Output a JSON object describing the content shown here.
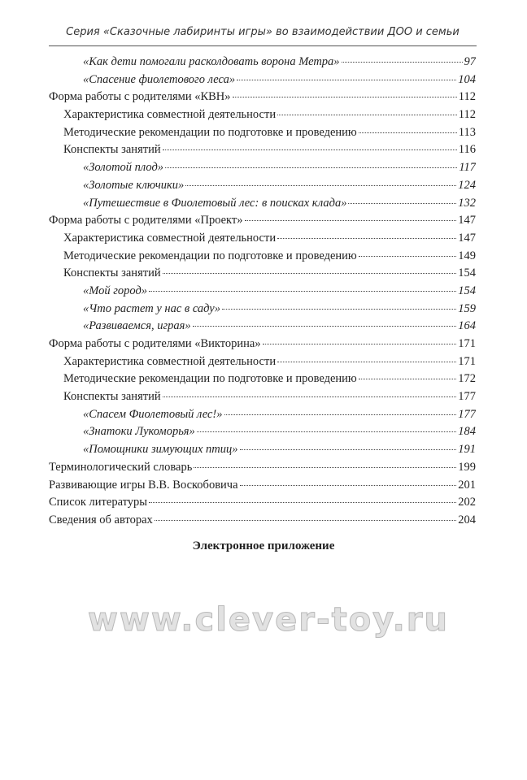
{
  "header": {
    "title": "Серия «Сказочные лабиринты игры» во взаимодействии ДОО и семьи"
  },
  "toc": [
    {
      "level": 2,
      "text": "«Как дети помогали расколдовать ворона Метра»",
      "page": "97"
    },
    {
      "level": 2,
      "text": "«Спасение фиолетового леса»",
      "page": "104"
    },
    {
      "level": 0,
      "text": "Форма работы с родителями «КВН»",
      "page": "112"
    },
    {
      "level": 1,
      "text": "Характеристика совместной деятельности",
      "page": "112"
    },
    {
      "level": 1,
      "text": "Методические рекомендации по подготовке и проведению",
      "page": "113"
    },
    {
      "level": 1,
      "text": "Конспекты занятий",
      "page": "116"
    },
    {
      "level": 2,
      "text": "«Золотой плод»",
      "page": "117"
    },
    {
      "level": 2,
      "text": "«Золотые ключики»",
      "page": "124"
    },
    {
      "level": 2,
      "text": "«Путешествие в Фиолетовый лес: в поисках клада»",
      "page": "132"
    },
    {
      "level": 0,
      "text": "Форма работы с родителями «Проект»",
      "page": "147"
    },
    {
      "level": 1,
      "text": "Характеристика совместной деятельности",
      "page": "147"
    },
    {
      "level": 1,
      "text": "Методические рекомендации по подготовке и проведению",
      "page": "149"
    },
    {
      "level": 1,
      "text": "Конспекты занятий",
      "page": "154"
    },
    {
      "level": 2,
      "text": "«Мой город»",
      "page": "154"
    },
    {
      "level": 2,
      "text": "«Что растет у нас в саду»",
      "page": "159"
    },
    {
      "level": 2,
      "text": "«Развиваемся, играя»",
      "page": "164"
    },
    {
      "level": 0,
      "text": "Форма работы с родителями «Викторина»",
      "page": "171"
    },
    {
      "level": 1,
      "text": "Характеристика совместной деятельности",
      "page": "171"
    },
    {
      "level": 1,
      "text": "Методические рекомендации по подготовке и проведению",
      "page": "172"
    },
    {
      "level": 1,
      "text": "Конспекты занятий",
      "page": "177"
    },
    {
      "level": 2,
      "text": "«Спасем Фиолетовый лес!»",
      "page": "177"
    },
    {
      "level": 2,
      "text": "«Знатоки Лукоморья»",
      "page": "184"
    },
    {
      "level": 2,
      "text": "«Помощники зимующих птиц»",
      "page": "191"
    },
    {
      "level": 0,
      "text": "Терминологический словарь",
      "page": "199"
    },
    {
      "level": 0,
      "text": "Развивающие игры В.В. Воскобовича",
      "page": "201"
    },
    {
      "level": 0,
      "text": "Список литературы",
      "page": "202"
    },
    {
      "level": 0,
      "text": "Сведения об авторах",
      "page": "204"
    }
  ],
  "appendix": {
    "title": "Электронное приложение"
  },
  "watermark": "www.clever-toy.ru"
}
